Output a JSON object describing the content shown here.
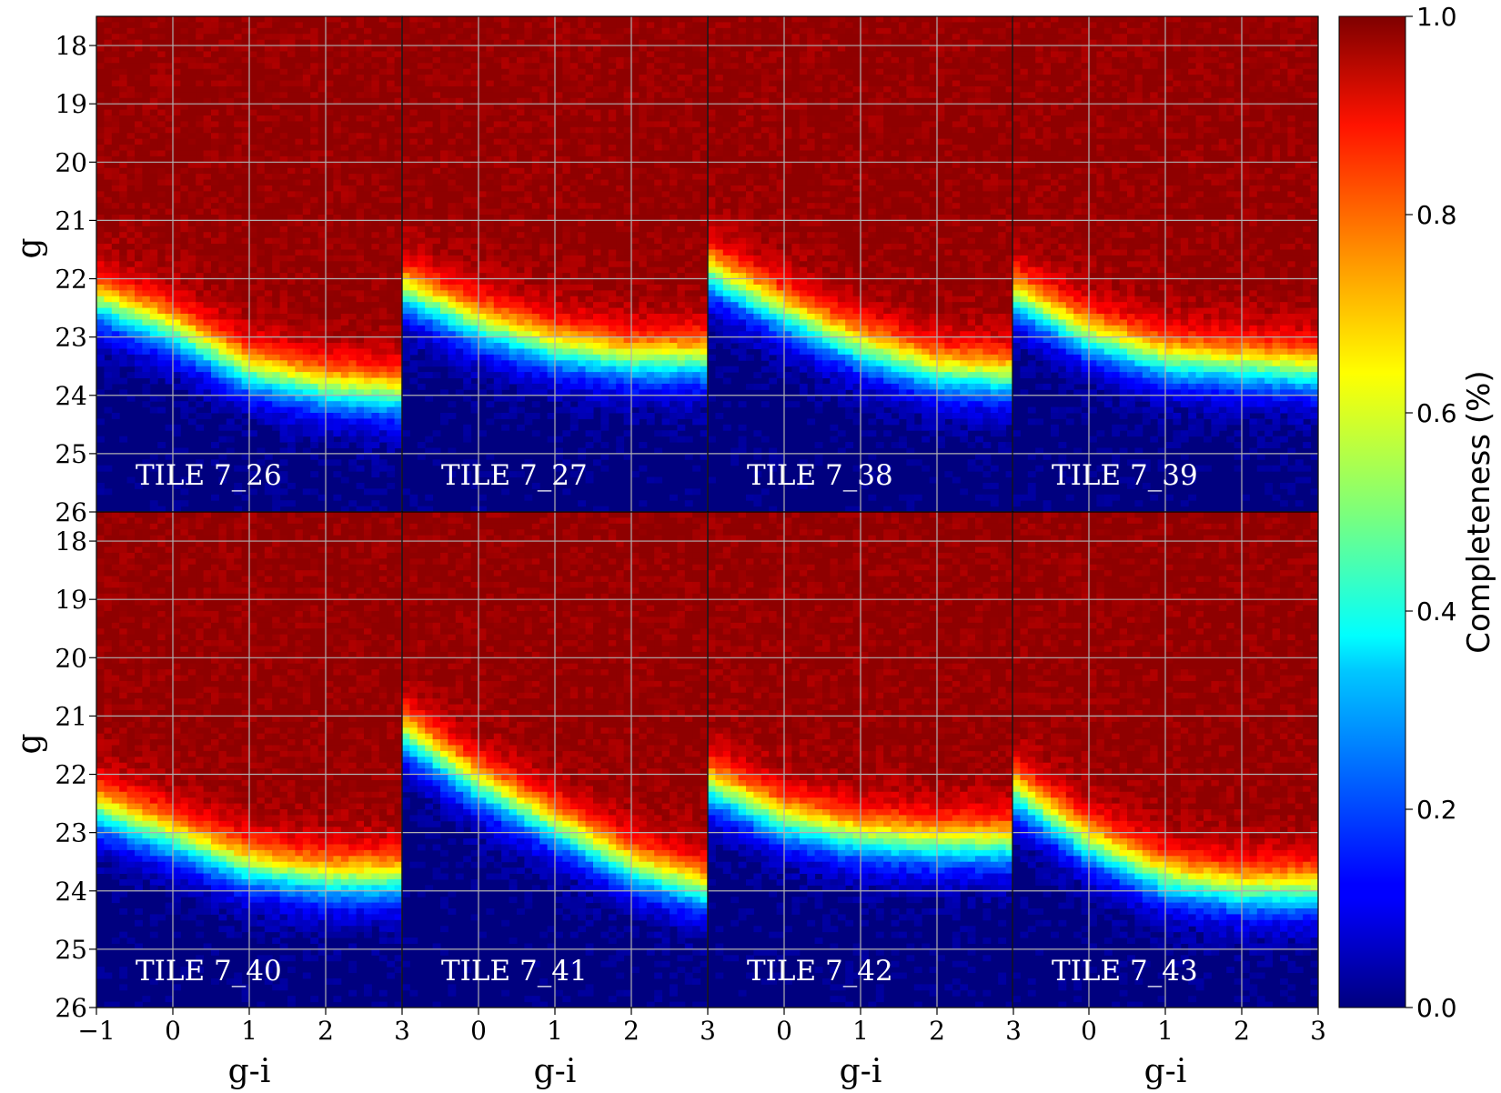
{
  "chart_data": {
    "type": "heatmap",
    "colormap": "jet",
    "grid": true,
    "shared_axes": {
      "xlabel": "g-i",
      "ylabel": "g",
      "xlim": [
        -1,
        3
      ],
      "ylim": [
        26,
        17.5
      ],
      "xticks": [
        -1,
        0,
        1,
        2,
        3
      ],
      "xtick_labels": [
        "−1",
        "0",
        "1",
        "2",
        "3"
      ],
      "yticks": [
        18,
        19,
        20,
        21,
        22,
        23,
        24,
        25,
        26
      ],
      "ytick_labels": [
        "18",
        "19",
        "20",
        "21",
        "22",
        "23",
        "24",
        "25",
        "26"
      ]
    },
    "colorbar": {
      "label": "Completeness (%)",
      "range": [
        0.0,
        1.0
      ],
      "ticks": [
        0.0,
        0.2,
        0.4,
        0.6,
        0.8,
        1.0
      ],
      "tick_labels": [
        "0.0",
        "0.2",
        "0.4",
        "0.6",
        "0.8",
        "1.0"
      ]
    },
    "panels": [
      {
        "name": "TILE 7_26",
        "completeness_50pct_g": [
          [
            -1,
            22.4
          ],
          [
            0,
            22.9
          ],
          [
            1,
            23.6
          ],
          [
            2,
            23.9
          ],
          [
            3,
            24.0
          ]
        ]
      },
      {
        "name": "TILE 7_27",
        "completeness_50pct_g": [
          [
            -1,
            22.2
          ],
          [
            0,
            22.8
          ],
          [
            1,
            23.2
          ],
          [
            2,
            23.4
          ],
          [
            3,
            23.4
          ]
        ]
      },
      {
        "name": "TILE 7_38",
        "completeness_50pct_g": [
          [
            -1,
            21.9
          ],
          [
            0,
            22.6
          ],
          [
            1,
            23.2
          ],
          [
            2,
            23.6
          ],
          [
            3,
            23.7
          ]
        ]
      },
      {
        "name": "TILE 7_39",
        "completeness_50pct_g": [
          [
            -1,
            22.3
          ],
          [
            0,
            23.0
          ],
          [
            1,
            23.4
          ],
          [
            2,
            23.5
          ],
          [
            3,
            23.6
          ]
        ]
      },
      {
        "name": "TILE 7_40",
        "completeness_50pct_g": [
          [
            -1,
            22.6
          ],
          [
            0,
            23.1
          ],
          [
            1,
            23.6
          ],
          [
            2,
            23.8
          ],
          [
            3,
            23.8
          ]
        ]
      },
      {
        "name": "TILE 7_41",
        "completeness_50pct_g": [
          [
            -1,
            21.3
          ],
          [
            0,
            22.2
          ],
          [
            1,
            22.9
          ],
          [
            2,
            23.6
          ],
          [
            3,
            24.0
          ]
        ]
      },
      {
        "name": "TILE 7_42",
        "completeness_50pct_g": [
          [
            -1,
            22.2
          ],
          [
            0,
            22.8
          ],
          [
            1,
            23.1
          ],
          [
            2,
            23.2
          ],
          [
            3,
            23.2
          ]
        ]
      },
      {
        "name": "TILE 7_43",
        "completeness_50pct_g": [
          [
            -1,
            22.3
          ],
          [
            0,
            23.2
          ],
          [
            1,
            23.8
          ],
          [
            2,
            24.0
          ],
          [
            3,
            24.0
          ]
        ]
      }
    ]
  }
}
